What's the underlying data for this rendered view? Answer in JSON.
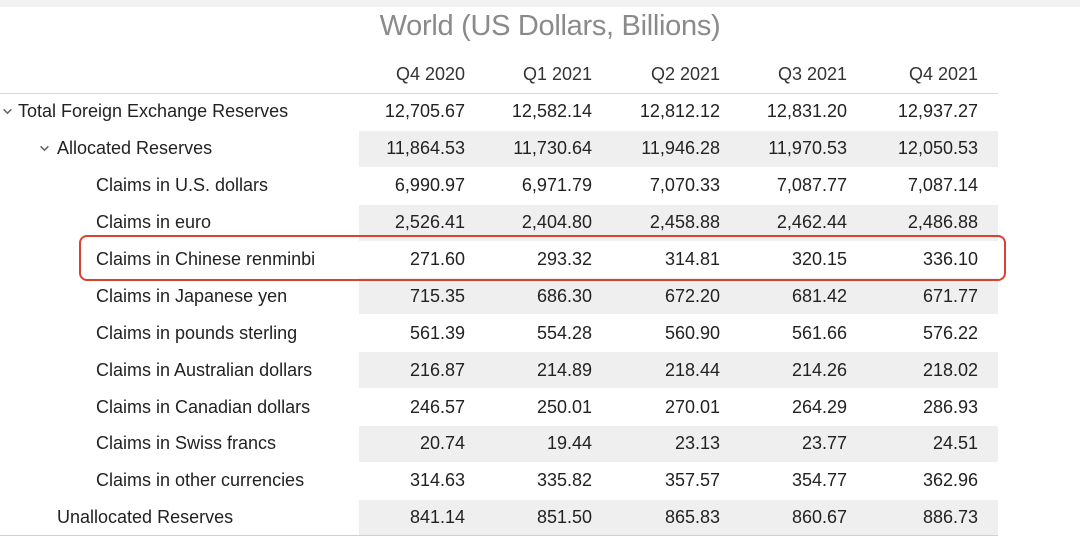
{
  "title": "World (US Dollars, Billions)",
  "columns": [
    "Q4 2020",
    "Q1 2021",
    "Q2 2021",
    "Q3 2021",
    "Q4 2021"
  ],
  "rows": [
    {
      "label": "Total Foreign Exchange Reserves",
      "values": [
        "12,705.67",
        "12,582.14",
        "12,812.12",
        "12,831.20",
        "12,937.27"
      ]
    },
    {
      "label": "Allocated Reserves",
      "values": [
        "11,864.53",
        "11,730.64",
        "11,946.28",
        "11,970.53",
        "12,050.53"
      ]
    },
    {
      "label": "Claims in U.S. dollars",
      "values": [
        "6,990.97",
        "6,971.79",
        "7,070.33",
        "7,087.77",
        "7,087.14"
      ]
    },
    {
      "label": "Claims in euro",
      "values": [
        "2,526.41",
        "2,404.80",
        "2,458.88",
        "2,462.44",
        "2,486.88"
      ]
    },
    {
      "label": "Claims in Chinese renminbi",
      "values": [
        "271.60",
        "293.32",
        "314.81",
        "320.15",
        "336.10"
      ]
    },
    {
      "label": "Claims in Japanese yen",
      "values": [
        "715.35",
        "686.30",
        "672.20",
        "681.42",
        "671.77"
      ]
    },
    {
      "label": "Claims in pounds sterling",
      "values": [
        "561.39",
        "554.28",
        "560.90",
        "561.66",
        "576.22"
      ]
    },
    {
      "label": "Claims in Australian dollars",
      "values": [
        "216.87",
        "214.89",
        "218.44",
        "214.26",
        "218.02"
      ]
    },
    {
      "label": "Claims in Canadian dollars",
      "values": [
        "246.57",
        "250.01",
        "270.01",
        "264.29",
        "286.93"
      ]
    },
    {
      "label": "Claims in Swiss francs",
      "values": [
        "20.74",
        "19.44",
        "23.13",
        "23.77",
        "24.51"
      ]
    },
    {
      "label": "Claims in other currencies",
      "values": [
        "314.63",
        "335.82",
        "357.57",
        "354.77",
        "362.96"
      ]
    },
    {
      "label": "Unallocated Reserves",
      "values": [
        "841.14",
        "851.50",
        "865.83",
        "860.67",
        "886.73"
      ]
    }
  ],
  "highlight_color": "#d9422f",
  "expand_icon": "chevron-down-icon"
}
